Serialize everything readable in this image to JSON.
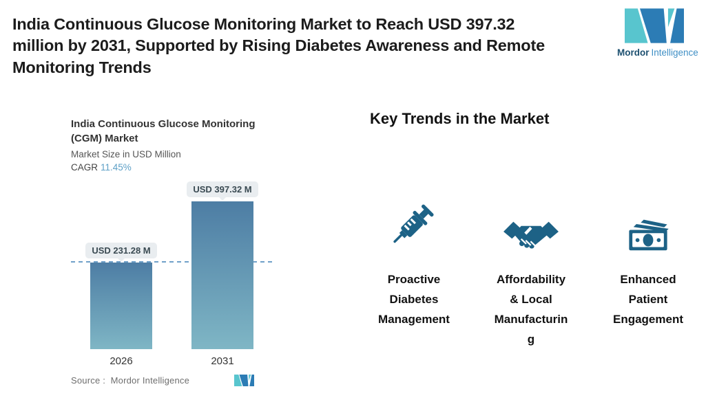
{
  "header": {
    "title": "India Continuous Glucose Monitoring Market to Reach USD 397.32\nmillion by 2031, Supported by Rising Diabetes Awareness and Remote\nMonitoring Trends",
    "brand_name": "Mordor",
    "brand_name2": "Intelligence",
    "logo_icon": "mordor-mn-mark-icon"
  },
  "chart": {
    "title": "India Continuous Glucose Monitoring\n(CGM) Market",
    "subtitle": "Market Size in USD Million",
    "cagr_label": "CAGR",
    "cagr_value": "11.45%",
    "source_label": "Source :",
    "source_value": "Mordor Intelligence",
    "bars": [
      {
        "year": "2026",
        "label": "USD 231.28 M"
      },
      {
        "year": "2031",
        "label": "USD 397.32 M"
      }
    ]
  },
  "chart_data": {
    "type": "bar",
    "categories": [
      "2026",
      "2031"
    ],
    "values": [
      231.28,
      397.32
    ],
    "data_labels": [
      "USD 231.28 M",
      "USD 397.32 M"
    ],
    "title": "India Continuous Glucose Monitoring (CGM) Market",
    "subtitle": "Market Size in USD Million",
    "cagr": "11.45%",
    "xlabel": "",
    "ylabel": "Market Size in USD Million",
    "ylim": [
      0,
      420
    ],
    "reference_line": 231.28,
    "grid": false,
    "legend": false,
    "bar_color_top": "#4d7da4",
    "bar_color_bottom": "#7fb6c5"
  },
  "trends": {
    "heading": "Key Trends in the Market",
    "items": [
      {
        "icon": "syringe-icon",
        "label": "Proactive\nDiabetes\nManagement"
      },
      {
        "icon": "handshake-icon",
        "label": "Affordability\n& Local\nManufacturin\ng"
      },
      {
        "icon": "money-icon",
        "label": "Enhanced\nPatient\nEngagement"
      }
    ]
  },
  "colors": {
    "brand_teal": "#58c5ce",
    "brand_blue": "#2c7cb5",
    "icon_blue": "#1d6286",
    "dashed_line": "#6fa0c8",
    "cagr_value": "#5c9fc6",
    "pill_bg": "#e9edf0",
    "pill_text": "#3a4a52"
  }
}
